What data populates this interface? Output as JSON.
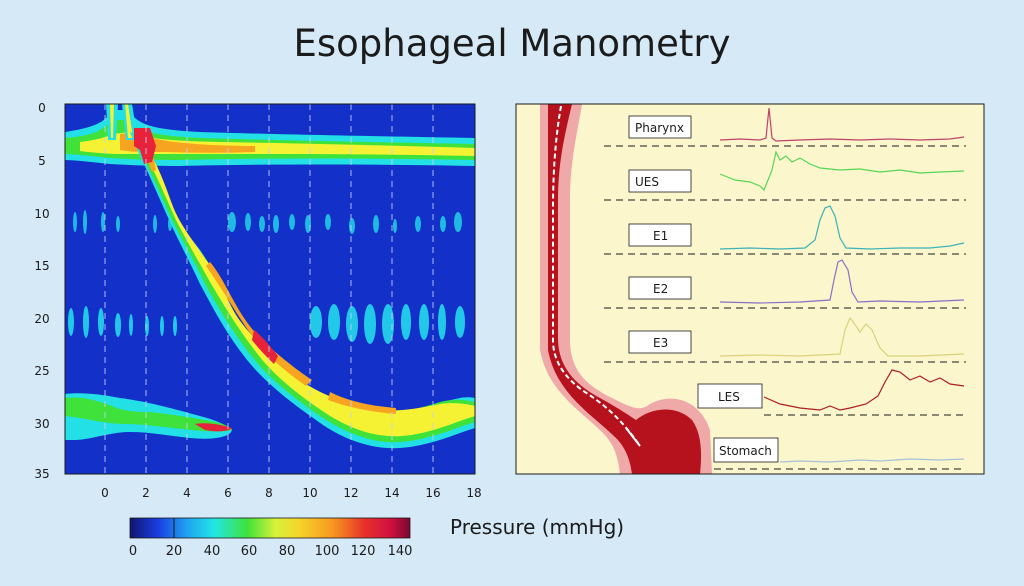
{
  "title": "Esophageal Manometry",
  "topography": {
    "y_ticks": [
      "0",
      "5",
      "10",
      "15",
      "20",
      "25",
      "30",
      "35"
    ],
    "x_ticks": [
      "0",
      "2",
      "4",
      "6",
      "8",
      "10",
      "12",
      "14",
      "16",
      "18"
    ],
    "colors": {
      "background": "#1330c9",
      "cyan": "#22e0e6",
      "green": "#3fe23a",
      "yellow": "#f4f232",
      "orange": "#f7a520",
      "red": "#e6233a",
      "magenta": "#d83aa3"
    }
  },
  "colorbar": {
    "label": "Pressure (mmHg)",
    "ticks": [
      "0",
      "20",
      "40",
      "60",
      "80",
      "100",
      "120",
      "140"
    ],
    "gradient": [
      "#0d1670",
      "#1b3de0",
      "#1fa0f0",
      "#22e6e6",
      "#3fe23a",
      "#d7f23a",
      "#f4d62a",
      "#f79a20",
      "#e6302a",
      "#d01040",
      "#7a0830"
    ]
  },
  "traces": {
    "segments": [
      {
        "label": "Pharynx",
        "color": "#c0436a"
      },
      {
        "label": "UES",
        "color": "#56d656"
      },
      {
        "label": "E1",
        "color": "#3bb3b8"
      },
      {
        "label": "E2",
        "color": "#8b6fc7"
      },
      {
        "label": "E3",
        "color": "#d8d27a"
      },
      {
        "label": "LES",
        "color": "#b01c23"
      },
      {
        "label": "Stomach",
        "color": "#a8c0d8"
      }
    ],
    "colors": {
      "panel_bg": "#fbf6cc",
      "tube_outer": "#f0a9a9",
      "tube_inner": "#b5121e",
      "catheter": "#ffffff"
    }
  }
}
